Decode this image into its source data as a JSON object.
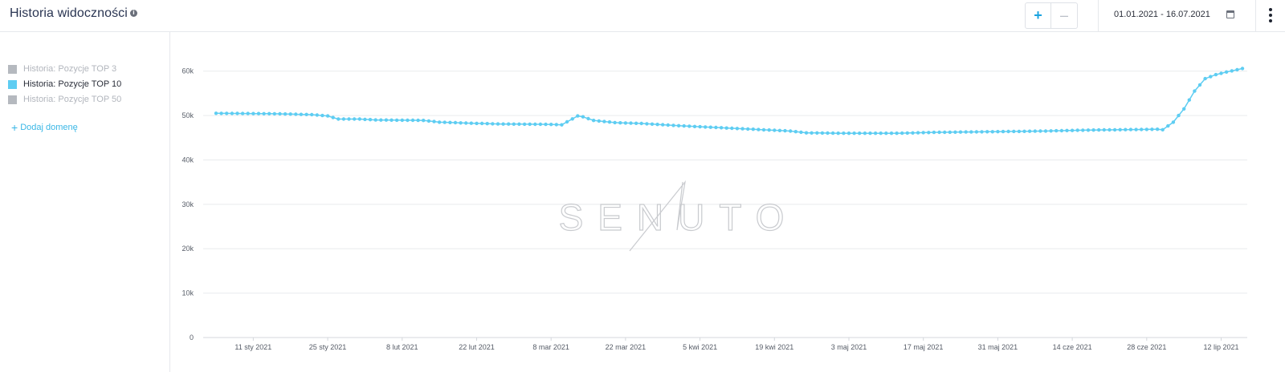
{
  "header": {
    "title": "Historia widoczności",
    "date_range": "01.01.2021 - 16.07.2021",
    "zoom_in_label": "+",
    "zoom_out_label": "–"
  },
  "sidebar": {
    "legend": [
      {
        "label": "Historia: Pozycje TOP 3",
        "active": false,
        "color": "#b5b9bf"
      },
      {
        "label": "Historia: Pozycje TOP 10",
        "active": true,
        "color": "#5ecdf2"
      },
      {
        "label": "Historia: Pozycje TOP 50",
        "active": false,
        "color": "#b5b9bf"
      }
    ],
    "add_domain_label": "Dodaj domenę"
  },
  "watermark": "SENUTO",
  "colors": {
    "series": "#5ecdf2",
    "inactive_text": "#b2b6bd",
    "accent": "#1aa3e0",
    "grid": "#e9ebee"
  },
  "chart_data": {
    "type": "line",
    "ylim": [
      0,
      65000
    ],
    "y_ticks": [
      0,
      10000,
      20000,
      30000,
      40000,
      50000,
      60000
    ],
    "y_tick_labels": [
      "0",
      "10k",
      "20k",
      "30k",
      "40k",
      "50k",
      "60k"
    ],
    "x_range": [
      "2021-01-04",
      "2021-07-16"
    ],
    "x_ticks": [
      "2021-01-11",
      "2021-01-25",
      "2021-02-08",
      "2021-02-22",
      "2021-03-08",
      "2021-03-22",
      "2021-04-05",
      "2021-04-19",
      "2021-05-03",
      "2021-05-17",
      "2021-05-31",
      "2021-06-14",
      "2021-06-28",
      "2021-07-12"
    ],
    "x_tick_labels": [
      "11 sty 2021",
      "25 sty 2021",
      "8 lut 2021",
      "22 lut 2021",
      "8 mar 2021",
      "22 mar 2021",
      "5 kwi 2021",
      "19 kwi 2021",
      "3 maj 2021",
      "17 maj 2021",
      "31 maj 2021",
      "14 cze 2021",
      "28 cze 2021",
      "12 lip 2021"
    ],
    "series": [
      {
        "visible": true,
        "points": [
          [
            "2021-01-04",
            50500
          ],
          [
            "2021-01-15",
            50400
          ],
          [
            "2021-01-22",
            50200
          ],
          [
            "2021-01-25",
            49900
          ],
          [
            "2021-01-27",
            49200
          ],
          [
            "2021-01-31",
            49200
          ],
          [
            "2021-02-03",
            49000
          ],
          [
            "2021-02-12",
            48900
          ],
          [
            "2021-02-15",
            48500
          ],
          [
            "2021-02-20",
            48300
          ],
          [
            "2021-02-26",
            48100
          ],
          [
            "2021-03-08",
            48000
          ],
          [
            "2021-03-10",
            47900
          ],
          [
            "2021-03-13",
            49900
          ],
          [
            "2021-03-14",
            49700
          ],
          [
            "2021-03-16",
            48900
          ],
          [
            "2021-03-20",
            48400
          ],
          [
            "2021-03-25",
            48200
          ],
          [
            "2021-04-01",
            47700
          ],
          [
            "2021-04-08",
            47300
          ],
          [
            "2021-04-15",
            46900
          ],
          [
            "2021-04-22",
            46500
          ],
          [
            "2021-04-25",
            46100
          ],
          [
            "2021-05-02",
            46000
          ],
          [
            "2021-05-12",
            46000
          ],
          [
            "2021-05-19",
            46200
          ],
          [
            "2021-05-26",
            46300
          ],
          [
            "2021-06-02",
            46400
          ],
          [
            "2021-06-09",
            46500
          ],
          [
            "2021-06-16",
            46700
          ],
          [
            "2021-06-23",
            46800
          ],
          [
            "2021-06-30",
            46900
          ],
          [
            "2021-07-01",
            46800
          ],
          [
            "2021-07-03",
            48500
          ],
          [
            "2021-07-05",
            51500
          ],
          [
            "2021-07-07",
            55500
          ],
          [
            "2021-07-09",
            58300
          ],
          [
            "2021-07-11",
            59200
          ],
          [
            "2021-07-13",
            59800
          ],
          [
            "2021-07-15",
            60300
          ],
          [
            "2021-07-16",
            60600
          ]
        ]
      }
    ]
  }
}
